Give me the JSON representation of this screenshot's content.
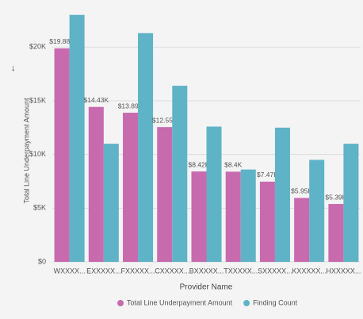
{
  "chart_data": {
    "type": "bar",
    "x_label": "Provider Name",
    "y_label": "Total Line Underpayment Amount",
    "categories": [
      "WXXXX...",
      "EXXXXX...",
      "FXXXXX...",
      "CXXXXX...",
      "BXXXXX...",
      "TXXXXX...",
      "SXXXXX...",
      "KXXXXX...",
      "HXXXXX..."
    ],
    "series": [
      {
        "name": "Total Line Underpayment Amount",
        "color": "#c86aae",
        "values": [
          19880,
          14430,
          13890,
          12550,
          8420,
          8400,
          7470,
          5950,
          5390
        ],
        "value_labels": [
          "$19.88K",
          "$14.43K",
          "$13.89K",
          "$12.55K",
          "$8.42K",
          "$8.4K",
          "$7.47K",
          "$5.95K",
          "$5.39K"
        ]
      },
      {
        "name": "Finding Count",
        "color": "#5fb3c6",
        "values": [
          23000,
          11000,
          21300,
          16400,
          12600,
          8600,
          12500,
          9500,
          11000
        ]
      }
    ],
    "ylim": [
      0,
      23500
    ],
    "yticks": [
      {
        "value": 0,
        "label": "$0"
      },
      {
        "value": 5000,
        "label": "$5K"
      },
      {
        "value": 10000,
        "label": "$10K"
      },
      {
        "value": 15000,
        "label": "$15K"
      },
      {
        "value": 20000,
        "label": "$20K"
      }
    ],
    "grid": true,
    "legend": "bottom"
  }
}
